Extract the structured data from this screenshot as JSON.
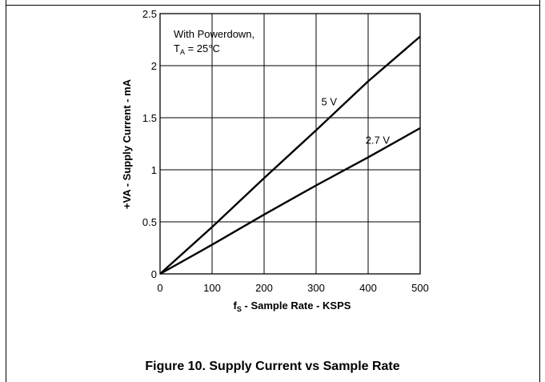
{
  "caption": "Figure 10. Supply Current vs Sample Rate",
  "chart_data": {
    "type": "line",
    "title": "",
    "xlabel": {
      "main": "f",
      "sub": "S",
      "rest": " - Sample Rate - KSPS"
    },
    "ylabel": "+VA - Supply Current - mA",
    "xlim": [
      0,
      500
    ],
    "ylim": [
      0,
      2.5
    ],
    "x_ticks": [
      0,
      100,
      200,
      300,
      400,
      500
    ],
    "y_ticks": [
      "0",
      "0.5",
      "1",
      "1.5",
      "2",
      "2.5"
    ],
    "grid": true,
    "annotation": {
      "line1": "With Powerdown,",
      "line2_main": "T",
      "line2_sub": "A",
      "line2_rest": " = 25°C"
    },
    "series": [
      {
        "name": "5 V",
        "x": [
          0,
          100,
          200,
          300,
          400,
          500
        ],
        "y": [
          0.0,
          0.45,
          0.92,
          1.38,
          1.85,
          2.28
        ]
      },
      {
        "name": "2.7 V",
        "x": [
          0,
          100,
          200,
          300,
          400,
          500
        ],
        "y": [
          0.0,
          0.28,
          0.57,
          0.85,
          1.12,
          1.4
        ]
      }
    ],
    "series_label_positions": [
      {
        "x": 310,
        "y": 1.62
      },
      {
        "x": 395,
        "y": 1.25
      }
    ]
  }
}
